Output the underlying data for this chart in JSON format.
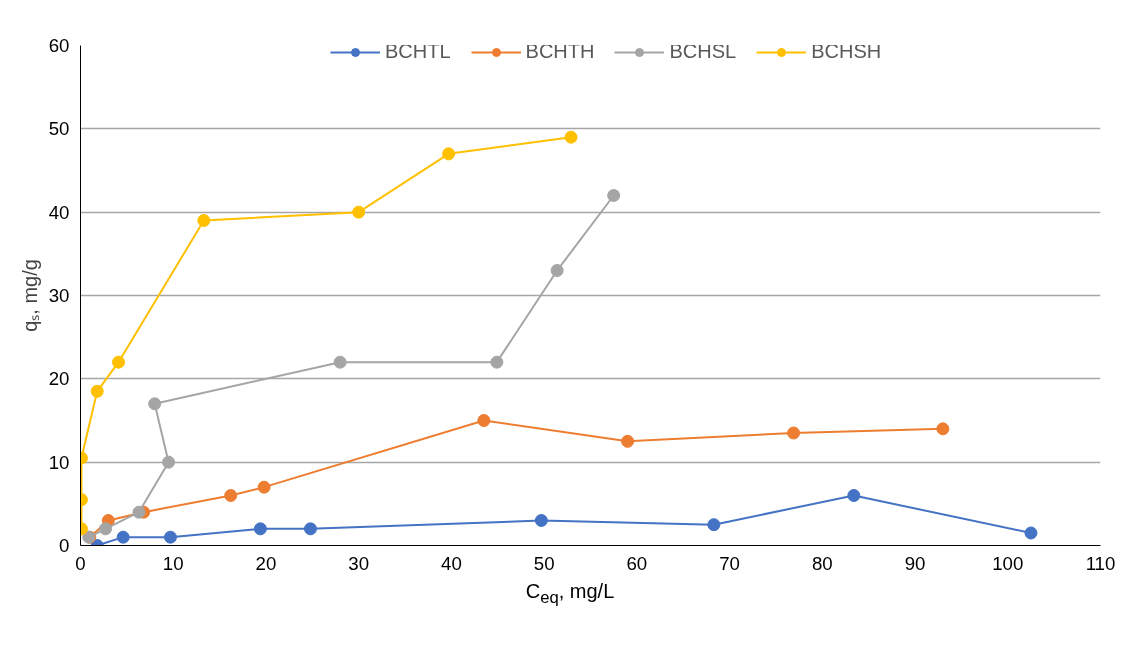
{
  "chart_data": {
    "type": "line",
    "xlabel": "C$_{eq}$, mg/L",
    "ylabel": "qₛ, mg/g",
    "xlim": [
      0,
      110
    ],
    "xticks": [
      0,
      10,
      20,
      30,
      40,
      50,
      60,
      70,
      80,
      90,
      100,
      110
    ],
    "ylim": [
      0,
      60
    ],
    "yticks": [
      0,
      10,
      20,
      30,
      40,
      50,
      60
    ],
    "grid": "y",
    "legend": "top",
    "marker": "circle",
    "line_style": "solid",
    "series": [
      {
        "name": "BCHTL",
        "color": "#4472c4",
        "x": [
          1.8,
          4.6,
          9.7,
          19.4,
          24.8,
          49.7,
          68.3,
          83.4,
          102.5
        ],
        "values": [
          0,
          1,
          1,
          2,
          2,
          3,
          2.5,
          6,
          1.5
        ]
      },
      {
        "name": "BCHTH",
        "color": "#ed7d31",
        "x": [
          1.0,
          3.0,
          6.8,
          16.2,
          19.8,
          43.5,
          59.0,
          76.9,
          93.0
        ],
        "values": [
          1,
          3,
          4,
          6,
          7,
          15,
          12.5,
          13.5,
          14
        ]
      },
      {
        "name": "BCHSL",
        "color": "#a5a5a5",
        "x": [
          0.9,
          2.7,
          6.3,
          9.5,
          8.0,
          28.0,
          44.9,
          51.4,
          57.5
        ],
        "values": [
          1,
          2,
          4,
          10,
          17,
          22,
          22,
          33,
          42
        ]
      },
      {
        "name": "BCHSH",
        "color": "#ffc000",
        "x": [
          0.1,
          0.1,
          0.1,
          1.8,
          4.1,
          13.3,
          30.0,
          39.7,
          52.9
        ],
        "values": [
          2,
          5.5,
          10.5,
          18.5,
          22,
          39,
          40,
          47,
          49
        ]
      }
    ]
  }
}
